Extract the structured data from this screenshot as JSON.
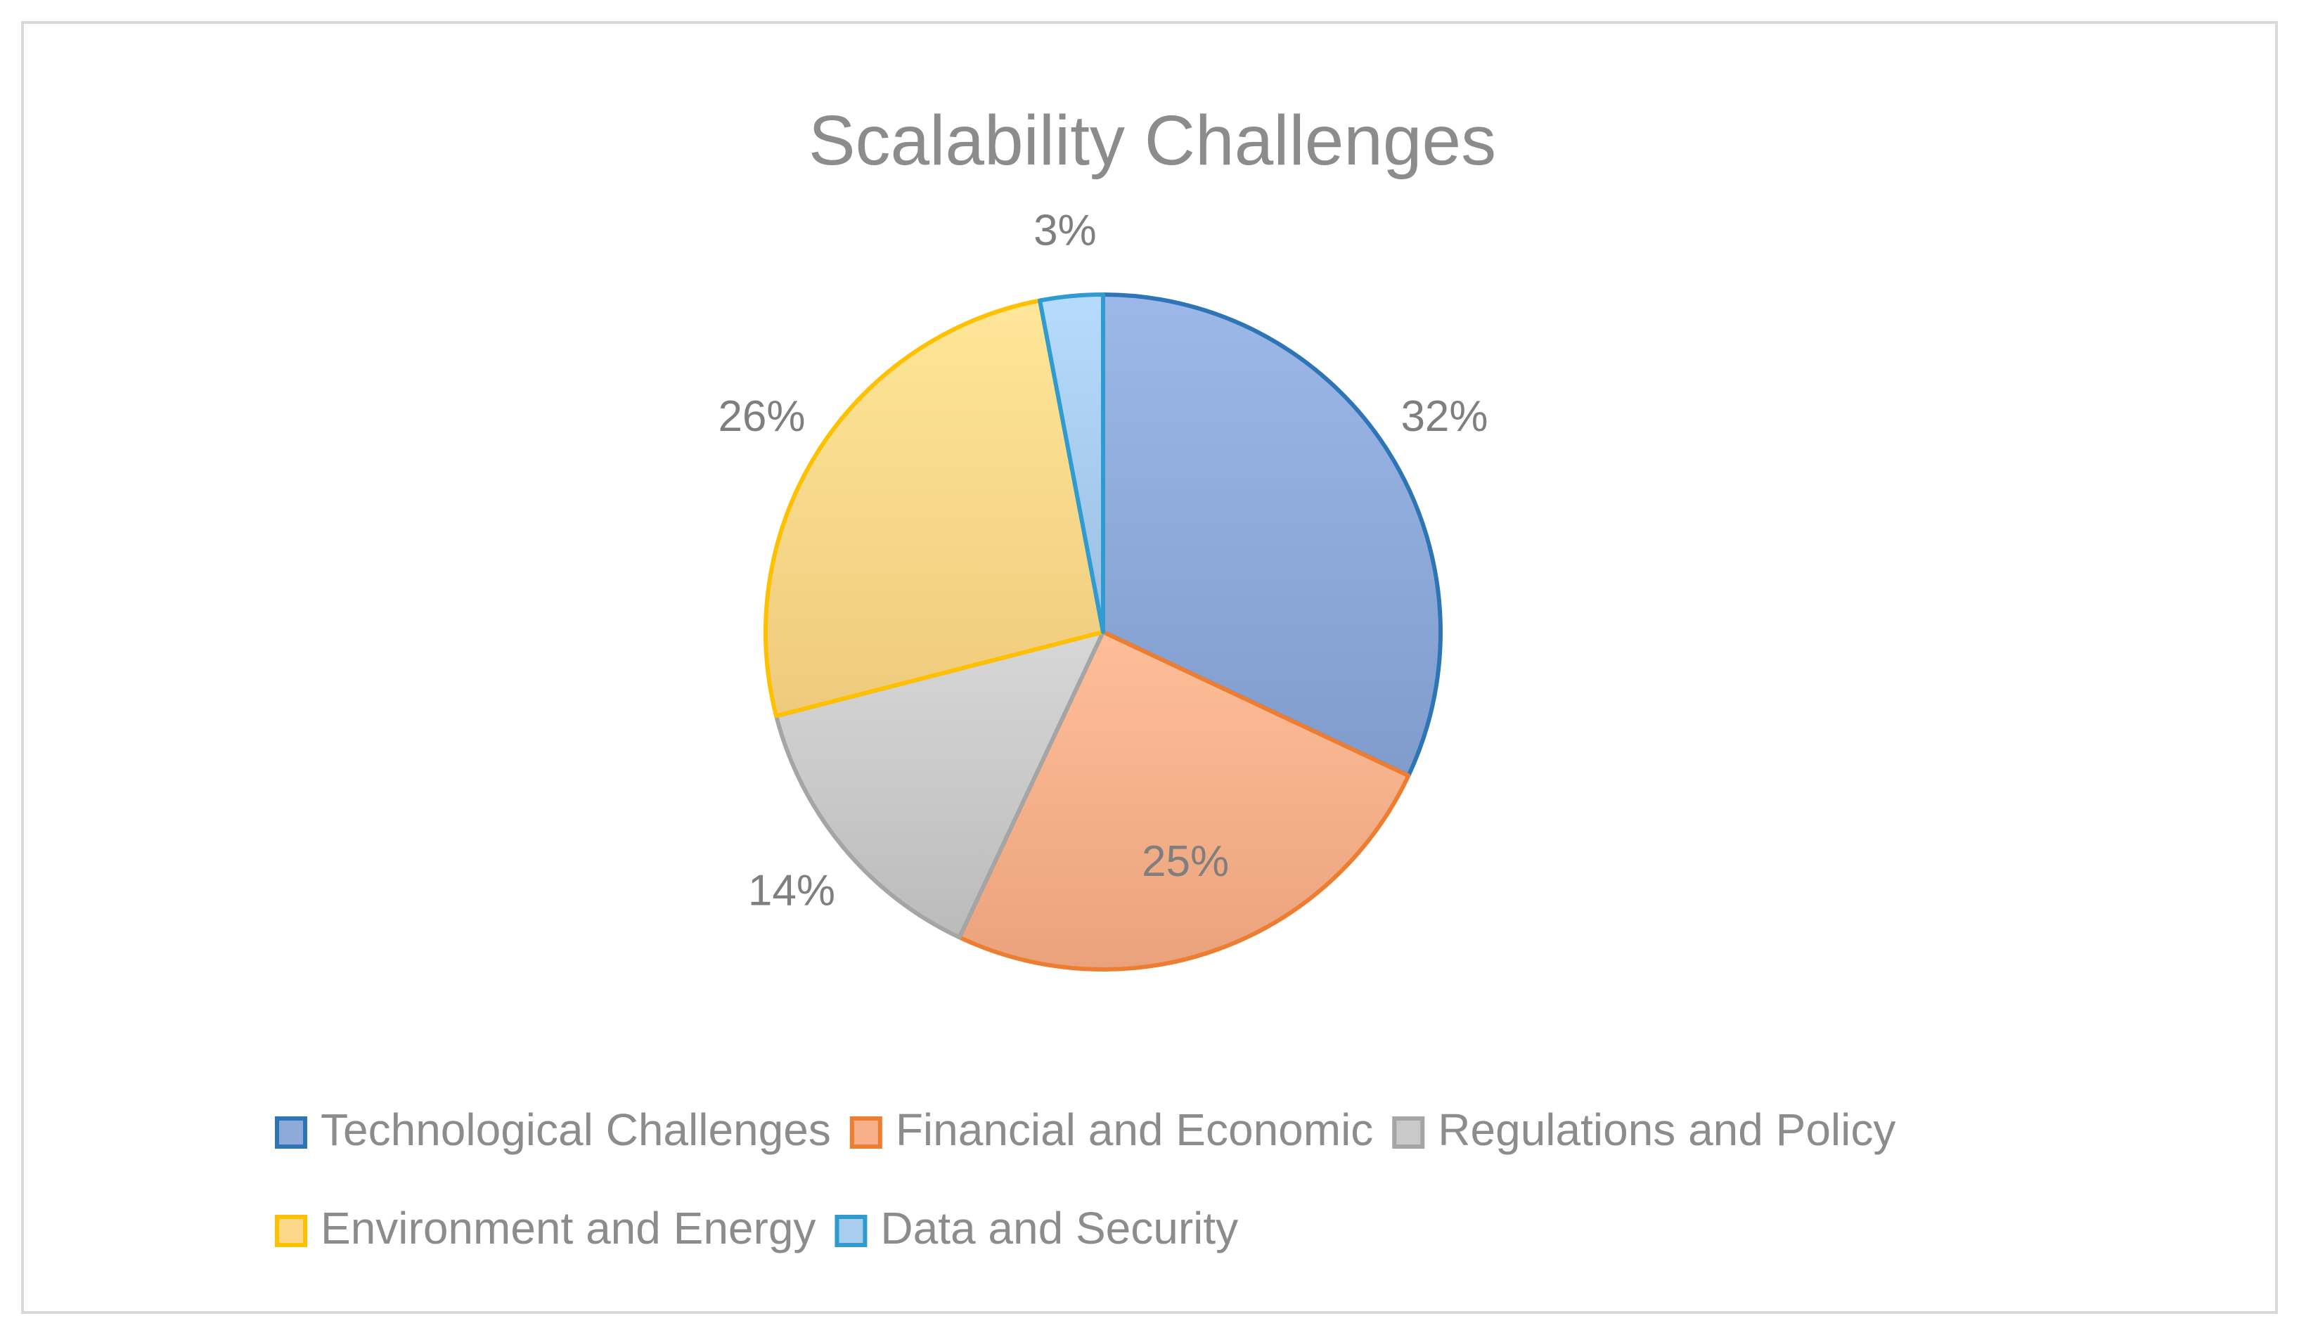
{
  "chart_data": {
    "type": "pie",
    "title": "Scalability Challenges",
    "start_angle_deg": 0,
    "direction": "clockwise",
    "legend_position": "bottom",
    "slices": [
      {
        "label": "Technological Challenges",
        "value": 32,
        "display": "32%",
        "color": "#8eaadb",
        "border": "#2e75b6"
      },
      {
        "label": "Financial and Economic",
        "value": 25,
        "display": "25%",
        "color": "#f8b08a",
        "border": "#ed7d31"
      },
      {
        "label": "Regulations and Policy",
        "value": 14,
        "display": "14%",
        "color": "#c9c9c9",
        "border": "#a5a5a5"
      },
      {
        "label": "Environment and Energy",
        "value": 26,
        "display": "26%",
        "color": "#fdd88a",
        "border": "#ffc000"
      },
      {
        "label": "Data and Security",
        "value": 3,
        "display": "3%",
        "color": "#a8cdee",
        "border": "#2f9bd1"
      }
    ]
  }
}
